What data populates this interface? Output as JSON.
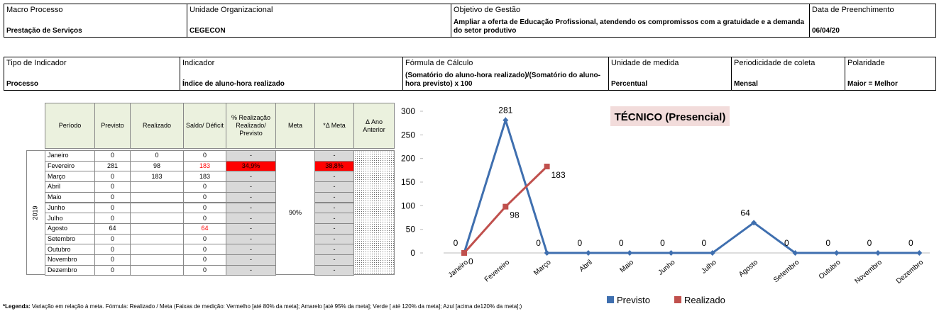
{
  "header_row1": [
    {
      "label": "Macro Processo",
      "value": "Prestação de Serviços"
    },
    {
      "label": "Unidade Organizacional",
      "value": "CEGECON"
    },
    {
      "label": "Objetivo de Gestão",
      "value": "Ampliar a oferta de Educação Profissional, atendendo os compromissos com a gratuidade e a demanda do setor produtivo"
    },
    {
      "label": "Data de Preenchimento",
      "value": "06/04/20"
    }
  ],
  "header_row2": [
    {
      "label": "Tipo de Indicador",
      "value": "Processo"
    },
    {
      "label": "Indicador",
      "value": "Índice de aluno-hora realizado"
    },
    {
      "label": "Fórmula  de Cálculo",
      "value": "(Somatório do aluno-hora realizado)/(Somatório do aluno-hora previsto) x 100"
    },
    {
      "label": "Unidade de medida",
      "value": "Percentual"
    },
    {
      "label": "Periodicidade de coleta",
      "value": "Mensal"
    },
    {
      "label": "Polaridade",
      "value": "Maior = Melhor"
    }
  ],
  "table": {
    "headers": [
      "Período",
      "Previsto",
      "Realizado",
      "Saldo/ Déficit",
      "% Realização Realizado/ Previsto",
      "Meta",
      "*Δ Meta",
      "Δ Ano Anterior"
    ],
    "year": "2019",
    "meta": "90%",
    "rows": [
      [
        "Janeiro",
        "0",
        "0",
        "0",
        "-",
        "-"
      ],
      [
        "Fevereiro",
        "281",
        "98",
        "183",
        "34,9%",
        "38,8%"
      ],
      [
        "Março",
        "0",
        "183",
        "183",
        "-",
        "-"
      ],
      [
        "Abril",
        "0",
        "",
        "0",
        "-",
        "-"
      ],
      [
        "Maio",
        "0",
        "",
        "0",
        "-",
        "-"
      ],
      [
        "Junho",
        "0",
        "",
        "0",
        "-",
        "-"
      ],
      [
        "Julho",
        "0",
        "",
        "0",
        "-",
        "-"
      ],
      [
        "Agosto",
        "64",
        "",
        "64",
        "-",
        "-"
      ],
      [
        "Setembro",
        "0",
        "",
        "0",
        "-",
        "-"
      ],
      [
        "Outubro",
        "0",
        "",
        "0",
        "-",
        "-"
      ],
      [
        "Novembro",
        "0",
        "",
        "0",
        "-",
        "-"
      ],
      [
        "Dezembro",
        "0",
        "",
        "0",
        "-",
        "-"
      ]
    ],
    "red_text": [
      [
        1,
        3
      ],
      [
        7,
        3
      ]
    ],
    "red_fill": [
      [
        1,
        4
      ],
      [
        1,
        5
      ]
    ]
  },
  "chart_data": {
    "type": "line",
    "title": "TÉCNICO (Presencial)",
    "categories": [
      "Janeiro",
      "Fevereiro",
      "Março",
      "Abril",
      "Maio",
      "Junho",
      "Julho",
      "Agosto",
      "Setembro",
      "Outubro",
      "Novembro",
      "Dezembro"
    ],
    "series": [
      {
        "name": "Previsto",
        "color": "#3f6faf",
        "marker": "diamond",
        "values": [
          0,
          281,
          0,
          0,
          0,
          0,
          0,
          64,
          0,
          0,
          0,
          0
        ]
      },
      {
        "name": "Realizado",
        "color": "#c0504d",
        "marker": "square",
        "values": [
          0,
          98,
          183,
          null,
          null,
          null,
          null,
          null,
          null,
          null,
          null,
          null
        ]
      }
    ],
    "ylim": [
      0,
      300
    ],
    "yticks": [
      0,
      50,
      100,
      150,
      200,
      250,
      300
    ],
    "grid": false,
    "legend": "bottom"
  },
  "footer": {
    "bold": "*Legenda:",
    "text": " Variação em relação à meta. Fórmula: Realizado / Meta (Faixas de medição: Vermelho [até 80% da meta]; Amarelo [até 95% da meta]; Verde [ até 120% da meta]; Azul [acima de120% da meta];)"
  }
}
